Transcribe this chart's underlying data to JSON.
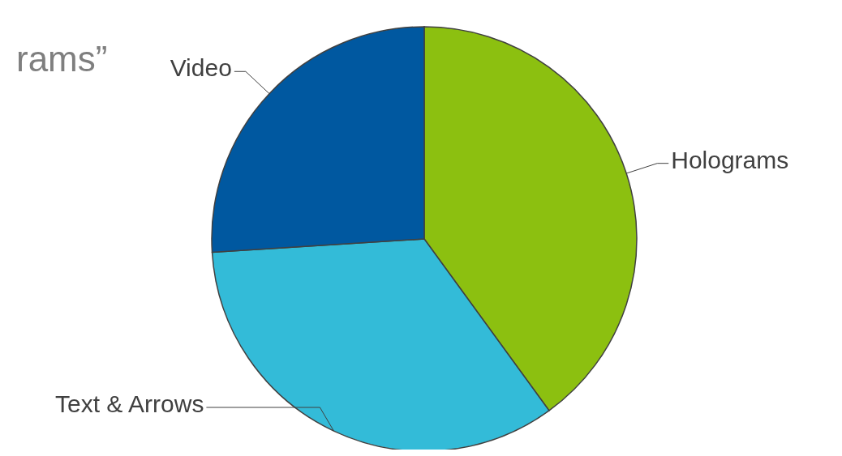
{
  "chart_data": {
    "type": "pie",
    "title": "rams”",
    "categories": [
      "Holograms",
      "Text & Arrows",
      "Video"
    ],
    "values": [
      40,
      34,
      26
    ],
    "colors": [
      "#8cc010",
      "#33bbd8",
      "#0058a0"
    ]
  }
}
